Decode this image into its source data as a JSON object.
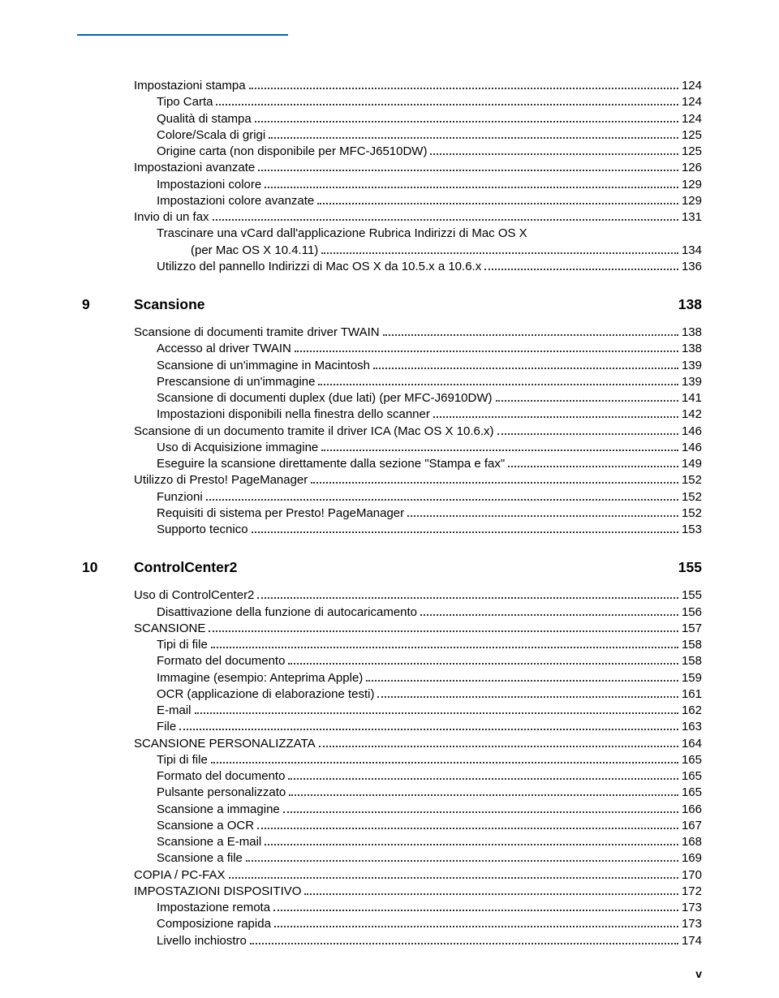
{
  "page_number": "v",
  "colors": {
    "rule": "#0066b3",
    "text": "#000000",
    "background": "#ffffff"
  },
  "blocks": [
    {
      "kind": "line",
      "level": 0,
      "title": "Impostazioni stampa",
      "page": "124"
    },
    {
      "kind": "line",
      "level": 1,
      "title": "Tipo Carta",
      "page": "124"
    },
    {
      "kind": "line",
      "level": 1,
      "title": "Qualità di stampa",
      "page": "124"
    },
    {
      "kind": "line",
      "level": 1,
      "title": "Colore/Scala di grigi",
      "page": "125"
    },
    {
      "kind": "line",
      "level": 1,
      "title": "Origine carta (non disponibile per MFC-J6510DW)",
      "page": "125"
    },
    {
      "kind": "line",
      "level": 0,
      "title": "Impostazioni avanzate",
      "page": "126"
    },
    {
      "kind": "line",
      "level": 1,
      "title": "Impostazioni colore",
      "page": "129"
    },
    {
      "kind": "line",
      "level": 1,
      "title": "Impostazioni colore avanzate",
      "page": "129"
    },
    {
      "kind": "line",
      "level": 0,
      "title": "Invio di un fax",
      "page": "131"
    },
    {
      "kind": "line",
      "level": 1,
      "title": "Trascinare una vCard dall'applicazione Rubrica Indirizzi di Mac OS X (per Mac OS X 10.4.11)",
      "page": "134"
    },
    {
      "kind": "line",
      "level": 1,
      "title": "Utilizzo del pannello Indirizzi di Mac OS X da 10.5.x a 10.6.x",
      "page": "136"
    },
    {
      "kind": "section",
      "num": "9",
      "title": "Scansione",
      "page": "138"
    },
    {
      "kind": "line",
      "level": 0,
      "title": "Scansione di documenti tramite driver TWAIN",
      "page": "138"
    },
    {
      "kind": "line",
      "level": 1,
      "title": "Accesso al driver TWAIN",
      "page": "138"
    },
    {
      "kind": "line",
      "level": 1,
      "title": "Scansione di un'immagine in Macintosh",
      "page": "139"
    },
    {
      "kind": "line",
      "level": 1,
      "title": "Prescansione di un'immagine",
      "page": "139"
    },
    {
      "kind": "line",
      "level": 1,
      "title": "Scansione di documenti duplex (due lati) (per MFC-J6910DW)",
      "page": "141"
    },
    {
      "kind": "line",
      "level": 1,
      "title": "Impostazioni disponibili nella finestra dello scanner",
      "page": "142"
    },
    {
      "kind": "line",
      "level": 0,
      "title": "Scansione di un documento tramite il driver ICA (Mac OS X 10.6.x)",
      "page": "146"
    },
    {
      "kind": "line",
      "level": 1,
      "title": "Uso di Acquisizione immagine",
      "page": "146"
    },
    {
      "kind": "line",
      "level": 1,
      "title": "Eseguire la scansione direttamente dalla sezione \"Stampa e fax\"",
      "page": "149"
    },
    {
      "kind": "line",
      "level": 0,
      "title": "Utilizzo di Presto! PageManager",
      "page": "152"
    },
    {
      "kind": "line",
      "level": 1,
      "title": "Funzioni",
      "page": "152"
    },
    {
      "kind": "line",
      "level": 1,
      "title": "Requisiti di sistema per Presto! PageManager",
      "page": "152"
    },
    {
      "kind": "line",
      "level": 1,
      "title": "Supporto tecnico",
      "page": "153"
    },
    {
      "kind": "section",
      "num": "10",
      "title": "ControlCenter2",
      "page": "155"
    },
    {
      "kind": "line",
      "level": 0,
      "title": "Uso di ControlCenter2",
      "page": "155"
    },
    {
      "kind": "line",
      "level": 1,
      "title": "Disattivazione della funzione di autocaricamento",
      "page": "156"
    },
    {
      "kind": "line",
      "level": 0,
      "title": "SCANSIONE",
      "page": "157"
    },
    {
      "kind": "line",
      "level": 1,
      "title": "Tipi di file",
      "page": "158"
    },
    {
      "kind": "line",
      "level": 1,
      "title": "Formato del documento",
      "page": "158"
    },
    {
      "kind": "line",
      "level": 1,
      "title": "Immagine (esempio: Anteprima Apple)",
      "page": "159"
    },
    {
      "kind": "line",
      "level": 1,
      "title": "OCR (applicazione di elaborazione testi)",
      "page": "161"
    },
    {
      "kind": "line",
      "level": 1,
      "title": "E-mail",
      "page": "162"
    },
    {
      "kind": "line",
      "level": 1,
      "title": "File",
      "page": "163"
    },
    {
      "kind": "line",
      "level": 0,
      "title": "SCANSIONE PERSONALIZZATA",
      "page": "164"
    },
    {
      "kind": "line",
      "level": 1,
      "title": "Tipi di file",
      "page": "165"
    },
    {
      "kind": "line",
      "level": 1,
      "title": "Formato del documento",
      "page": "165"
    },
    {
      "kind": "line",
      "level": 1,
      "title": "Pulsante personalizzato",
      "page": "165"
    },
    {
      "kind": "line",
      "level": 1,
      "title": "Scansione a immagine",
      "page": "166"
    },
    {
      "kind": "line",
      "level": 1,
      "title": "Scansione a OCR",
      "page": "167"
    },
    {
      "kind": "line",
      "level": 1,
      "title": "Scansione a E-mail",
      "page": "168"
    },
    {
      "kind": "line",
      "level": 1,
      "title": "Scansione a file",
      "page": "169"
    },
    {
      "kind": "line",
      "level": 0,
      "title": "COPIA / PC-FAX",
      "page": "170"
    },
    {
      "kind": "line",
      "level": 0,
      "title": "IMPOSTAZIONI DISPOSITIVO",
      "page": "172"
    },
    {
      "kind": "line",
      "level": 1,
      "title": "Impostazione remota",
      "page": "173"
    },
    {
      "kind": "line",
      "level": 1,
      "title": "Composizione rapida",
      "page": "173"
    },
    {
      "kind": "line",
      "level": 1,
      "title": "Livello inchiostro",
      "page": "174"
    }
  ]
}
